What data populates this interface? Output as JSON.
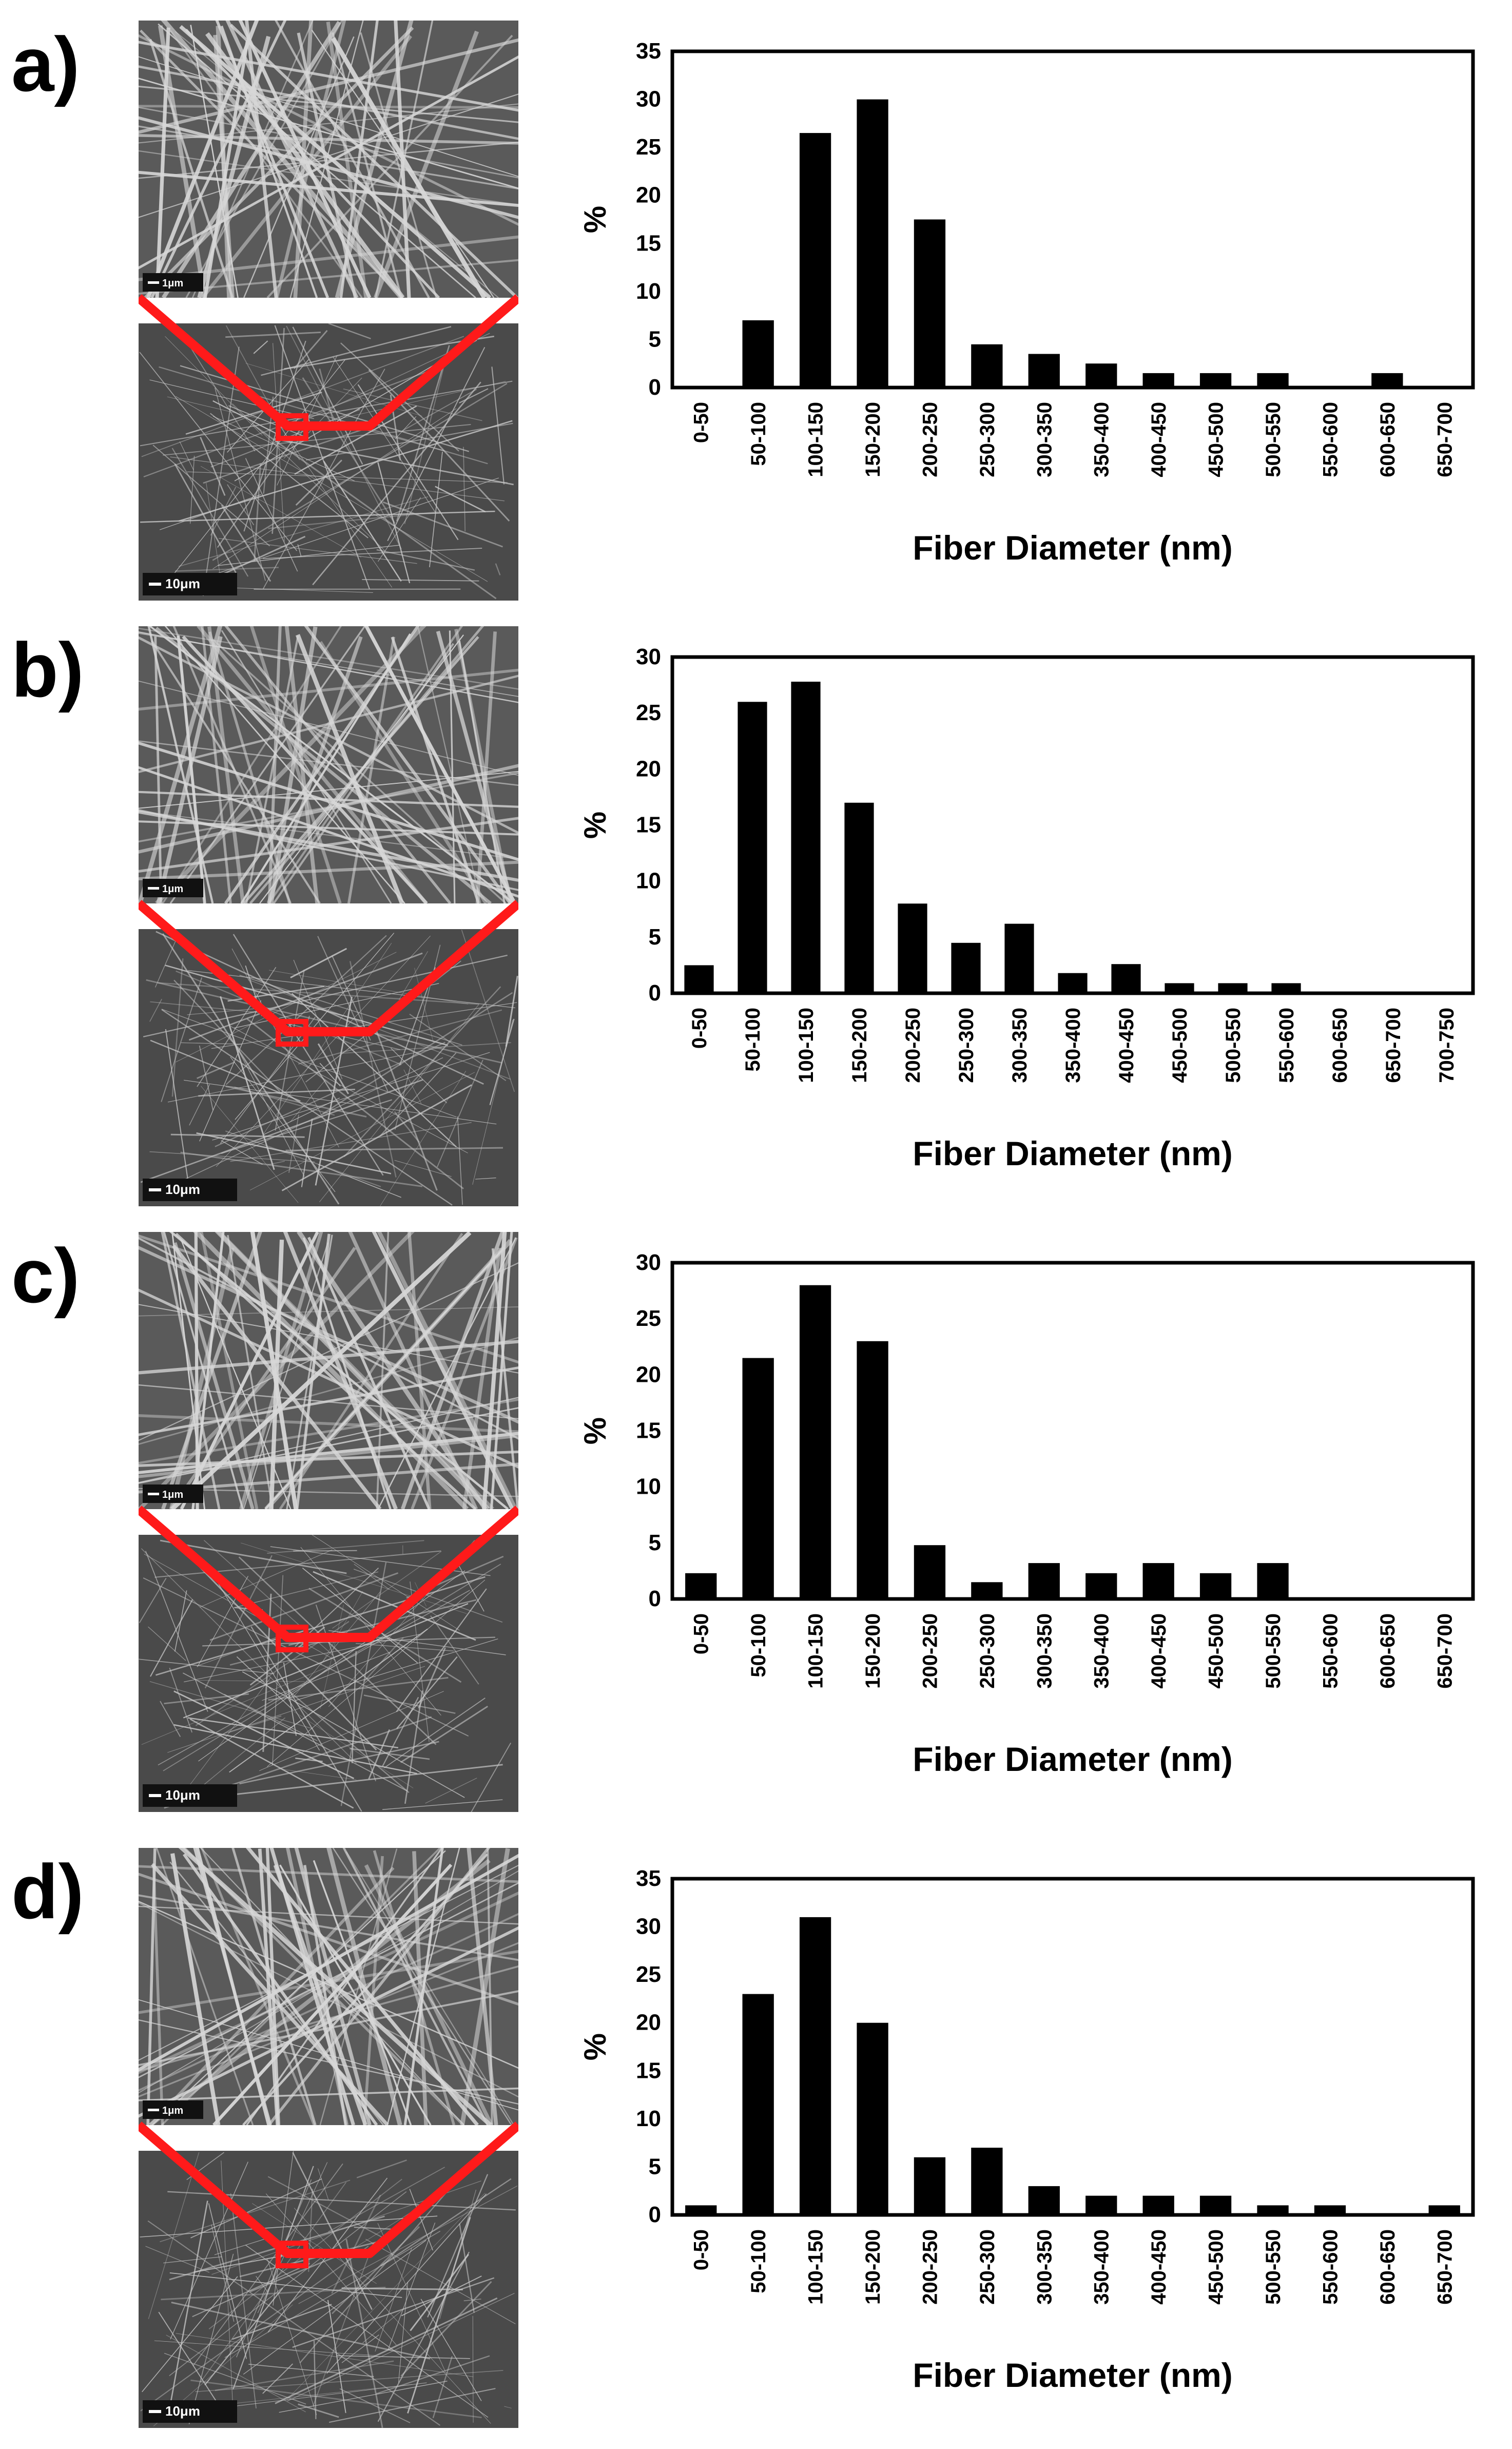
{
  "figure": {
    "panels": [
      {
        "letter": "a)",
        "sem_top_scale": "1μm",
        "sem_bottom_scale": "10μm"
      },
      {
        "letter": "b)",
        "sem_top_scale": "1μm",
        "sem_bottom_scale": "10μm"
      },
      {
        "letter": "c)",
        "sem_top_scale": "1μm",
        "sem_bottom_scale": "10μm"
      },
      {
        "letter": "d)",
        "sem_top_scale": "1μm",
        "sem_bottom_scale": "10μm"
      }
    ]
  },
  "colors": {
    "bar": "#000000",
    "frame": "#000000",
    "sem_bg": "#5a5a5a",
    "sem_fiber": "#d8d8d8",
    "zoom_lines": "#ff1a1a"
  },
  "chart_data": [
    {
      "type": "bar",
      "categories": [
        "0-50",
        "50-100",
        "100-150",
        "150-200",
        "200-250",
        "250-300",
        "300-350",
        "350-400",
        "400-450",
        "450-500",
        "500-550",
        "550-600",
        "600-650",
        "650-700"
      ],
      "values": [
        0,
        7,
        26.5,
        30,
        17.5,
        4.5,
        3.5,
        2.5,
        1.5,
        1.5,
        1.5,
        0,
        1.5,
        0
      ],
      "title": "",
      "xlabel": "Fiber Diameter (nm)",
      "ylabel": "%",
      "ylim": [
        0,
        35
      ],
      "yticks": [
        0,
        5,
        10,
        15,
        20,
        25,
        30,
        35
      ],
      "ytick_labels": [
        "0",
        "5",
        "10",
        "15",
        "20",
        "25",
        "30",
        "35"
      ]
    },
    {
      "type": "bar",
      "categories": [
        "0-50",
        "50-100",
        "100-150",
        "150-200",
        "200-250",
        "250-300",
        "300-350",
        "350-400",
        "400-450",
        "450-500",
        "500-550",
        "550-600",
        "600-650",
        "650-700",
        "700-750"
      ],
      "values": [
        2.5,
        26,
        27.8,
        17,
        8,
        4.5,
        6.2,
        1.8,
        2.6,
        0.9,
        0.9,
        0.9,
        0,
        0,
        0
      ],
      "title": "",
      "xlabel": "Fiber Diameter (nm)",
      "ylabel": "%",
      "ylim": [
        0,
        30
      ],
      "yticks": [
        0,
        5,
        10,
        15,
        20,
        25,
        30
      ],
      "ytick_labels": [
        "0",
        "5",
        "10",
        "15",
        "20",
        "25",
        "30"
      ]
    },
    {
      "type": "bar",
      "categories": [
        "0-50",
        "50-100",
        "100-150",
        "150-200",
        "200-250",
        "250-300",
        "300-350",
        "350-400",
        "400-450",
        "450-500",
        "500-550",
        "550-600",
        "600-650",
        "650-700"
      ],
      "values": [
        2.3,
        21.5,
        28,
        23,
        4.8,
        1.5,
        3.2,
        2.3,
        3.2,
        2.3,
        3.2,
        0,
        0,
        0
      ],
      "title": "",
      "xlabel": "Fiber Diameter (nm)",
      "ylabel": "%",
      "ylim": [
        0,
        30
      ],
      "yticks": [
        0,
        5,
        10,
        15,
        20,
        25,
        30
      ],
      "ytick_labels": [
        "0",
        "5",
        "10",
        "15",
        "20",
        "25",
        "30"
      ]
    },
    {
      "type": "bar",
      "categories": [
        "0-50",
        "50-100",
        "100-150",
        "150-200",
        "200-250",
        "250-300",
        "300-350",
        "350-400",
        "400-450",
        "450-500",
        "500-550",
        "550-600",
        "600-650",
        "650-700"
      ],
      "values": [
        1,
        23,
        31,
        20,
        6,
        7,
        3,
        2,
        2,
        2,
        1,
        1,
        0,
        1
      ],
      "title": "",
      "xlabel": "Fiber Diameter (nm)",
      "ylabel": "%",
      "ylim": [
        0,
        35
      ],
      "yticks": [
        0,
        5,
        10,
        15,
        20,
        25,
        30,
        35
      ],
      "ytick_labels": [
        "0",
        "5",
        "10",
        "15",
        "20",
        "25",
        "30",
        "35"
      ]
    }
  ]
}
